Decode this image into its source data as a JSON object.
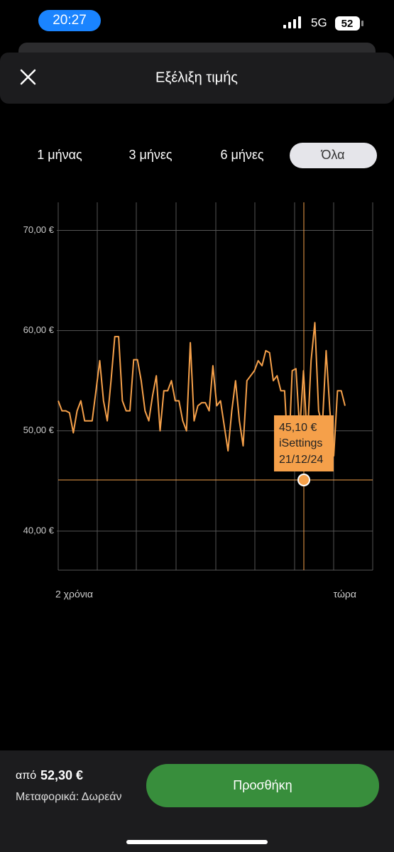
{
  "status_bar": {
    "time": "20:27",
    "network": "5G",
    "battery": "52"
  },
  "header": {
    "title": "Εξέλιξη τιμής"
  },
  "tabs": {
    "items": [
      "1 μήνας",
      "3 μήνες",
      "6 μήνες",
      "Όλα"
    ],
    "selected": 3
  },
  "chart_data": {
    "type": "line",
    "series": [
      {
        "color": "#f5a04a",
        "values": [
          53,
          52,
          52,
          51.8,
          49.8,
          52,
          53,
          51,
          51,
          51,
          54,
          57,
          53,
          51,
          55,
          59.4,
          59.4,
          53,
          52,
          52,
          57.1,
          57.1,
          55,
          52,
          51,
          53.5,
          55.5,
          50,
          54,
          54,
          55,
          53,
          53,
          51,
          50,
          58.8,
          51,
          52.5,
          52.8,
          52.8,
          52,
          56.5,
          52.5,
          53,
          50.5,
          48,
          52,
          55,
          51,
          48.5,
          55,
          55.5,
          56,
          57,
          56.5,
          58,
          57.8,
          55,
          55.5,
          54,
          54,
          47,
          56,
          56.2,
          50,
          56,
          49,
          57,
          60.8,
          52,
          50.5,
          58,
          52,
          47.5,
          54,
          54,
          52.5
        ]
      }
    ],
    "ylim": [
      36.1,
      72.8
    ],
    "yticks": [
      {
        "value": 40,
        "label": "40,00 €"
      },
      {
        "value": 50,
        "label": "50,00 €"
      },
      {
        "value": 60,
        "label": "60,00 €"
      },
      {
        "value": 70,
        "label": "70,00 €"
      }
    ],
    "grid": true,
    "x_start_label": "2 χρόνια",
    "x_end_label": "τώρα",
    "tooltip": {
      "value": 45.1,
      "value_label": "45,10 €",
      "seller": "iSettings",
      "date": "21/12/24"
    }
  },
  "footer": {
    "prefix": "από",
    "price": "52,30 €",
    "shipping": "Μεταφορικά: Δωρεάν",
    "button": "Προσθήκη"
  }
}
